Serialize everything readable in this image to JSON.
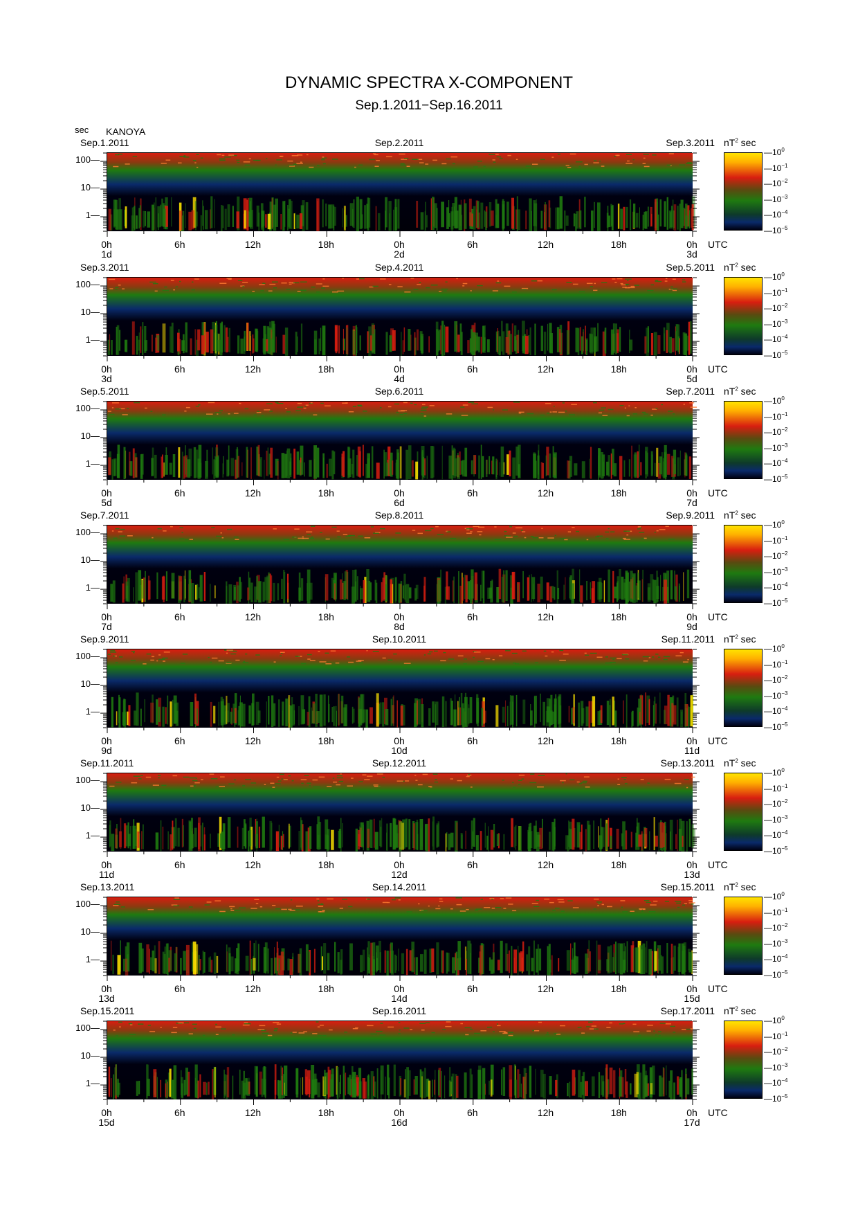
{
  "title": "DYNAMIC SPECTRA X-COMPONENT",
  "subtitle": "Sep.1.2011−Sep.16.2011",
  "station": "KANOYA",
  "y_unit": "sec",
  "x_unit": "UTC",
  "colorbar_unit": "nT",
  "colorbar_unit_exp": "2",
  "colorbar_unit_suffix": "sec",
  "colorbar_base": "10",
  "colorbar_exponents": [
    "0",
    "−1",
    "−2",
    "−3",
    "−4",
    "−5"
  ],
  "colors": {
    "low": "#000010",
    "mid_low": "#0a2a6a",
    "mid": "#1f7a10",
    "high": "#d81e10",
    "max": "#ffe400"
  },
  "chart_data": [
    {
      "type": "heatmap",
      "date_left": "Sep.1.2011",
      "date_mid": "Sep.2.2011",
      "date_right": "Sep.3.2011",
      "day_left": "1d",
      "day_mid": "2d",
      "day_right": "3d",
      "x_ticks": [
        "0h",
        "6h",
        "12h",
        "18h",
        "0h",
        "6h",
        "12h",
        "18h",
        "0h"
      ],
      "y_ticks": [
        "1",
        "10",
        "100"
      ],
      "ylabel": "sec",
      "xlabel": "UTC",
      "y_scale": "log",
      "ylim": [
        0.3,
        200
      ]
    },
    {
      "type": "heatmap",
      "date_left": "Sep.3.2011",
      "date_mid": "Sep.4.2011",
      "date_right": "Sep.5.2011",
      "day_left": "3d",
      "day_mid": "4d",
      "day_right": "5d",
      "x_ticks": [
        "0h",
        "6h",
        "12h",
        "18h",
        "0h",
        "6h",
        "12h",
        "18h",
        "0h"
      ],
      "y_ticks": [
        "1",
        "10",
        "100"
      ],
      "ylabel": "sec",
      "xlabel": "UTC",
      "y_scale": "log",
      "ylim": [
        0.3,
        200
      ]
    },
    {
      "type": "heatmap",
      "date_left": "Sep.5.2011",
      "date_mid": "Sep.6.2011",
      "date_right": "Sep.7.2011",
      "day_left": "5d",
      "day_mid": "6d",
      "day_right": "7d",
      "x_ticks": [
        "0h",
        "6h",
        "12h",
        "18h",
        "0h",
        "6h",
        "12h",
        "18h",
        "0h"
      ],
      "y_ticks": [
        "1",
        "10",
        "100"
      ],
      "ylabel": "sec",
      "xlabel": "UTC",
      "y_scale": "log",
      "ylim": [
        0.3,
        200
      ]
    },
    {
      "type": "heatmap",
      "date_left": "Sep.7.2011",
      "date_mid": "Sep.8.2011",
      "date_right": "Sep.9.2011",
      "day_left": "7d",
      "day_mid": "8d",
      "day_right": "9d",
      "x_ticks": [
        "0h",
        "6h",
        "12h",
        "18h",
        "0h",
        "6h",
        "12h",
        "18h",
        "0h"
      ],
      "y_ticks": [
        "1",
        "10",
        "100"
      ],
      "ylabel": "sec",
      "xlabel": "UTC",
      "y_scale": "log",
      "ylim": [
        0.3,
        200
      ]
    },
    {
      "type": "heatmap",
      "date_left": "Sep.9.2011",
      "date_mid": "Sep.10.2011",
      "date_right": "Sep.11.2011",
      "day_left": "9d",
      "day_mid": "10d",
      "day_right": "11d",
      "x_ticks": [
        "0h",
        "6h",
        "12h",
        "18h",
        "0h",
        "6h",
        "12h",
        "18h",
        "0h"
      ],
      "y_ticks": [
        "1",
        "10",
        "100"
      ],
      "ylabel": "sec",
      "xlabel": "UTC",
      "y_scale": "log",
      "ylim": [
        0.3,
        200
      ]
    },
    {
      "type": "heatmap",
      "date_left": "Sep.11.2011",
      "date_mid": "Sep.12.2011",
      "date_right": "Sep.13.2011",
      "day_left": "11d",
      "day_mid": "12d",
      "day_right": "13d",
      "x_ticks": [
        "0h",
        "6h",
        "12h",
        "18h",
        "0h",
        "6h",
        "12h",
        "18h",
        "0h"
      ],
      "y_ticks": [
        "1",
        "10",
        "100"
      ],
      "ylabel": "sec",
      "xlabel": "UTC",
      "y_scale": "log",
      "ylim": [
        0.3,
        200
      ]
    },
    {
      "type": "heatmap",
      "date_left": "Sep.13.2011",
      "date_mid": "Sep.14.2011",
      "date_right": "Sep.15.2011",
      "day_left": "13d",
      "day_mid": "14d",
      "day_right": "15d",
      "x_ticks": [
        "0h",
        "6h",
        "12h",
        "18h",
        "0h",
        "6h",
        "12h",
        "18h",
        "0h"
      ],
      "y_ticks": [
        "1",
        "10",
        "100"
      ],
      "ylabel": "sec",
      "xlabel": "UTC",
      "y_scale": "log",
      "ylim": [
        0.3,
        200
      ]
    },
    {
      "type": "heatmap",
      "date_left": "Sep.15.2011",
      "date_mid": "Sep.16.2011",
      "date_right": "Sep.17.2011",
      "day_left": "15d",
      "day_mid": "16d",
      "day_right": "17d",
      "x_ticks": [
        "0h",
        "6h",
        "12h",
        "18h",
        "0h",
        "6h",
        "12h",
        "18h",
        "0h"
      ],
      "y_ticks": [
        "1",
        "10",
        "100"
      ],
      "ylabel": "sec",
      "xlabel": "UTC",
      "y_scale": "log",
      "ylim": [
        0.3,
        200
      ]
    }
  ]
}
